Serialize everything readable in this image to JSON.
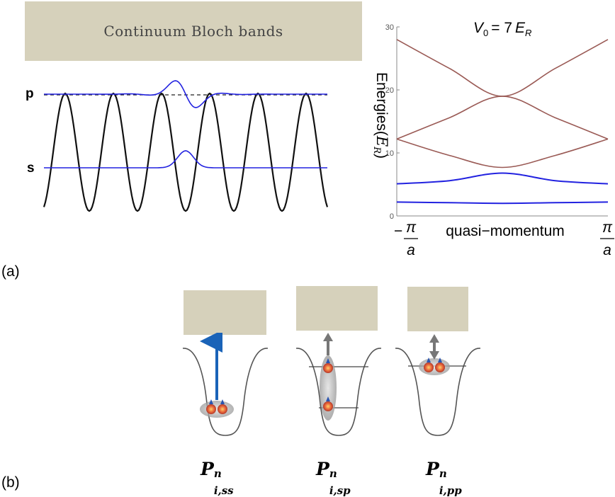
{
  "banner_title": "Continuum Bloch bands",
  "levels": {
    "p": "p",
    "s": "s"
  },
  "panel_labels": {
    "a": "(a)",
    "b": "(b)"
  },
  "chart_data": {
    "type": "line",
    "title": "V_0 = 7E_R",
    "title_parts": {
      "v": "V",
      "v_sub": "0",
      "eq": "= 7",
      "e": "E",
      "e_sub": "R"
    },
    "ylabel": "Energies(E_R)",
    "ylabel_parts": {
      "text": "Energies(",
      "e": "E",
      "e_sub": "R",
      "close": ")"
    },
    "xlabel": "quasi−momentum",
    "x_ticks": {
      "left_sign": "−",
      "left_num": "π",
      "left_den": "a",
      "right_num": "π",
      "right_den": "a"
    },
    "yticks": [
      "0",
      "10",
      "20",
      "30"
    ],
    "ylim": [
      0,
      30
    ],
    "xlim": [
      -1,
      1
    ],
    "colors": {
      "bound": "#2222e0",
      "continuum": "#9a5a55"
    },
    "series": [
      {
        "band": 1,
        "x": [
          -1,
          -0.5,
          0,
          0.5,
          1
        ],
        "values": [
          2.2,
          2.1,
          2.0,
          2.1,
          2.2
        ]
      },
      {
        "band": 2,
        "x": [
          -1,
          -0.5,
          0,
          0.5,
          1
        ],
        "values": [
          5.1,
          5.6,
          6.8,
          5.6,
          5.1
        ]
      },
      {
        "band": 3,
        "x": [
          -1,
          -0.5,
          0,
          0.5,
          1
        ],
        "values": [
          12.2,
          9.6,
          7.7,
          9.6,
          12.2
        ]
      },
      {
        "band": 4,
        "x": [
          -1,
          -0.5,
          0,
          0.5,
          1
        ],
        "values": [
          12.2,
          15.6,
          19.0,
          15.6,
          12.2
        ]
      },
      {
        "band": 5,
        "x": [
          -1,
          -0.5,
          0,
          0.5,
          1
        ],
        "values": [
          28.0,
          23.4,
          19.0,
          23.4,
          28.0
        ]
      }
    ]
  },
  "bottom_labels": [
    {
      "base": "P",
      "sup": "n",
      "sub": "i,ss"
    },
    {
      "base": "P",
      "sup": "n",
      "sub": "i,sp"
    },
    {
      "base": "P",
      "sup": "n",
      "sub": "i,pp"
    }
  ]
}
